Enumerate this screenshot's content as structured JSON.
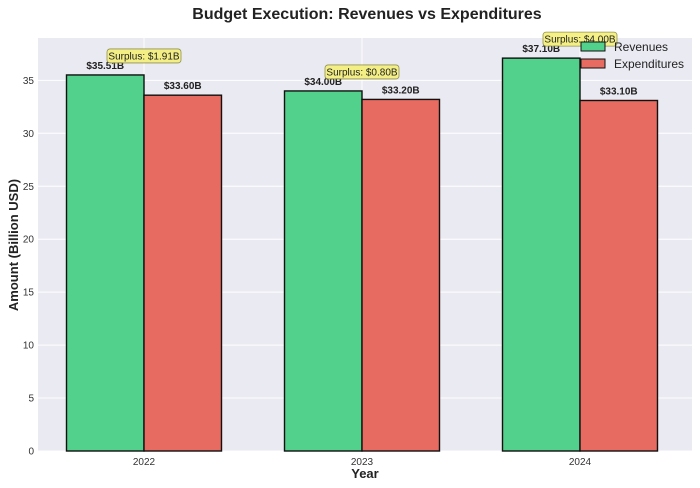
{
  "chart_data": {
    "type": "bar",
    "title": "Budget Execution: Revenues vs Expenditures",
    "xlabel": "Year",
    "ylabel": "Amount (Billion USD)",
    "categories": [
      "2022",
      "2023",
      "2024"
    ],
    "series": [
      {
        "name": "Revenues",
        "values": [
          35.51,
          34.0,
          37.1
        ],
        "color": "#52d18c",
        "labels": [
          "$35.51B",
          "$34.00B",
          "$37.10B"
        ]
      },
      {
        "name": "Expenditures",
        "values": [
          33.6,
          33.2,
          33.1
        ],
        "color": "#e86b61",
        "labels": [
          "$33.60B",
          "$33.20B",
          "$33.10B"
        ]
      }
    ],
    "annotations": [
      "Surplus: $1.91B",
      "Surplus: $0.80B",
      "Surplus: $4.00B"
    ],
    "annotation_color": "#f5f07a",
    "yticks": [
      0,
      5,
      10,
      15,
      20,
      25,
      30,
      35
    ],
    "ylim": [
      0,
      39
    ],
    "grid": true,
    "legend_position": "top-right",
    "background": "#eaeaf2",
    "bar_edge_color": "#111111"
  }
}
